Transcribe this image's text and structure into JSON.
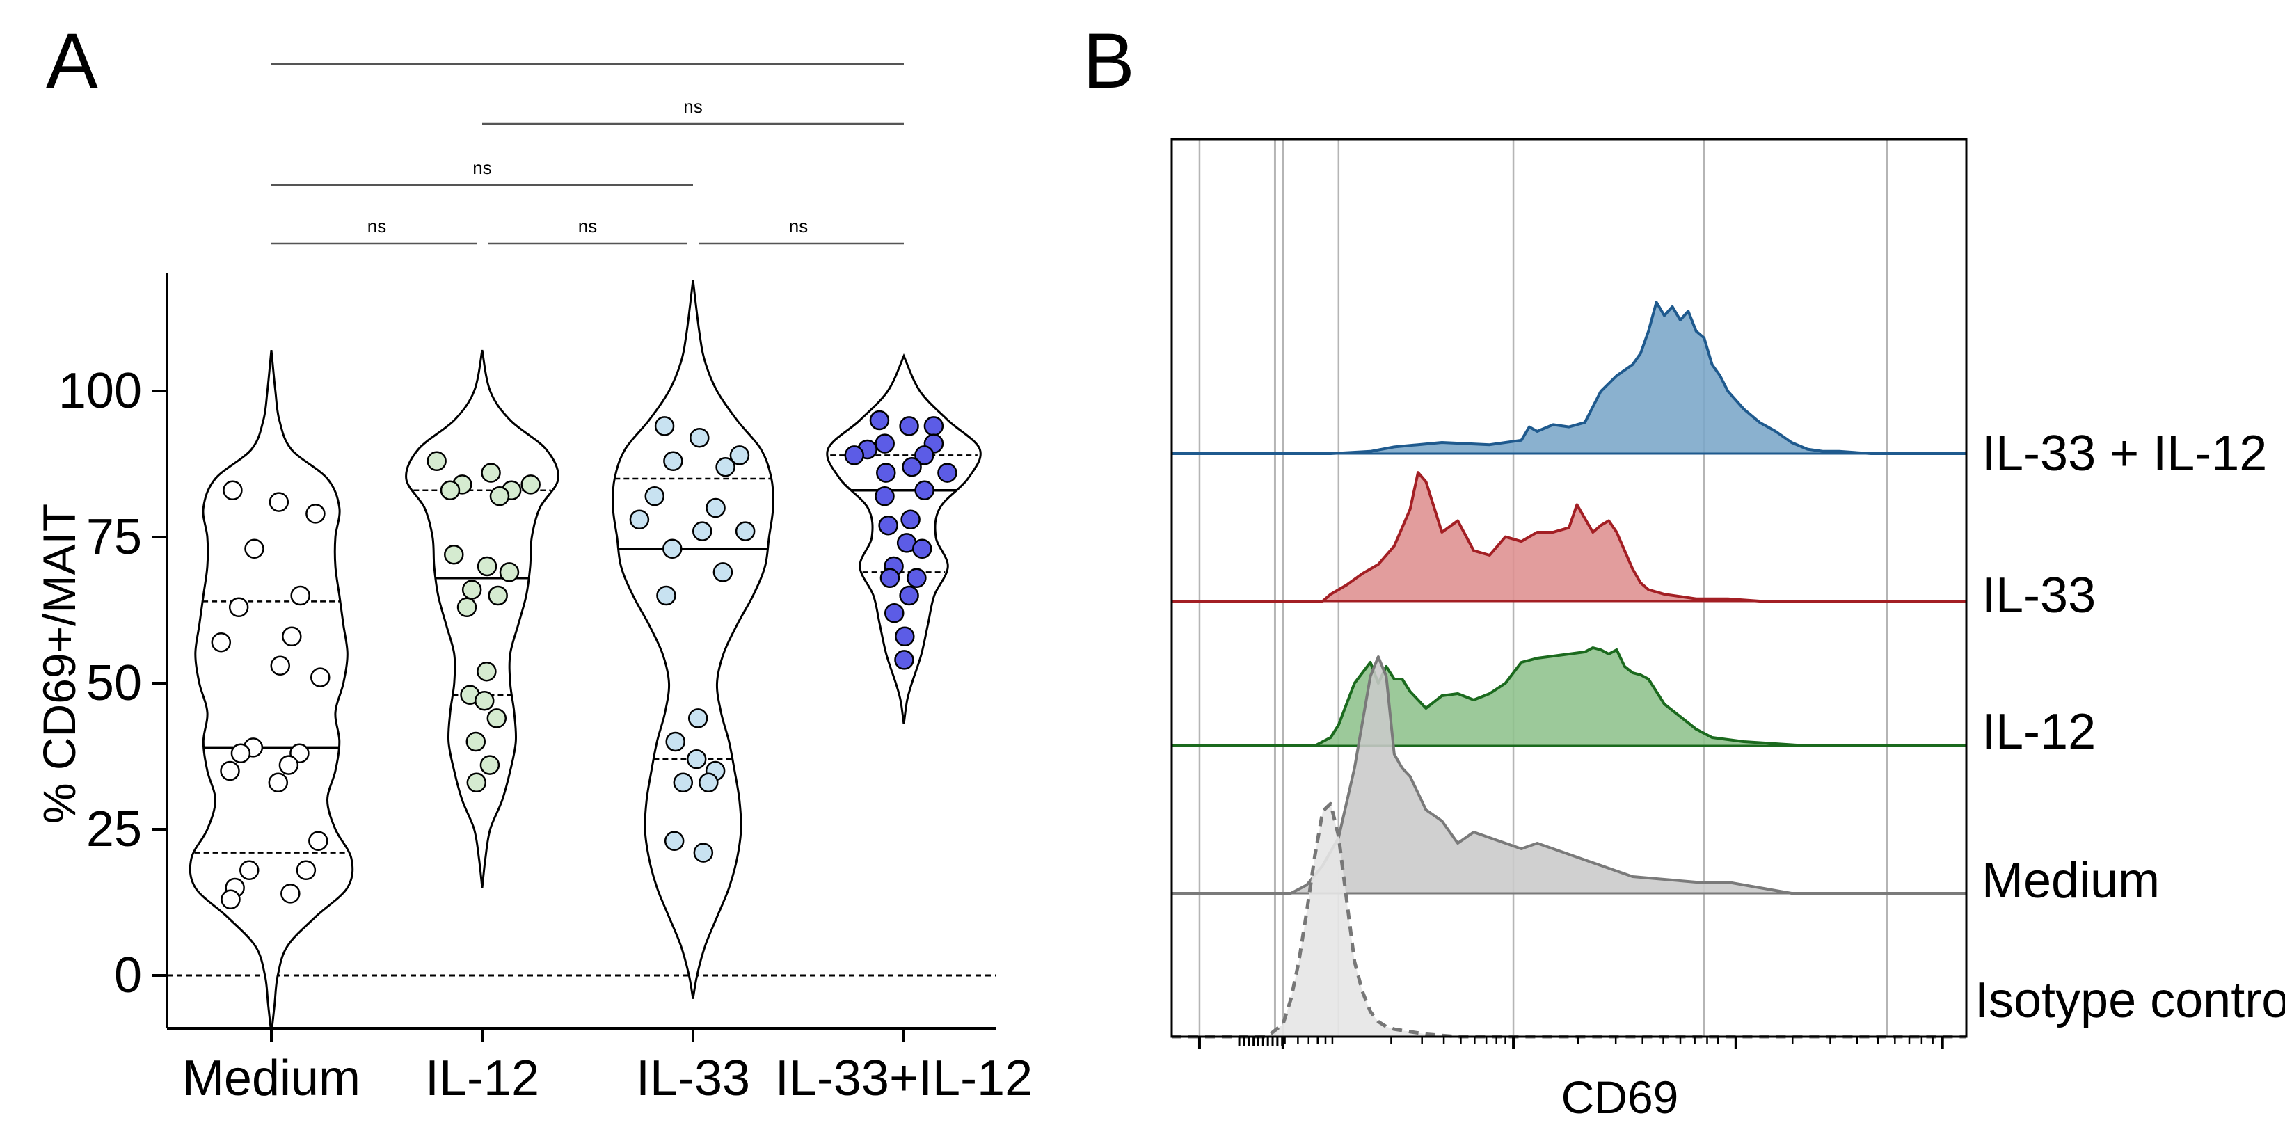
{
  "panels": {
    "a_letter": "A",
    "b_letter": "B"
  },
  "chart_data": [
    {
      "type": "violin",
      "panel": "A",
      "ylabel": "% CD69+/MAIT",
      "xlabel": "",
      "ylim": [
        -10,
        120
      ],
      "yticks": [
        0,
        25,
        50,
        75,
        100
      ],
      "zero_line": true,
      "categories": [
        "Medium",
        "IL-12",
        "IL-33",
        "IL-33+IL-12"
      ],
      "colors": [
        "#ffffff",
        "#d5ebd0",
        "#c8e2f1",
        "#5c5ce6"
      ],
      "series": [
        {
          "name": "Medium",
          "points": [
            83,
            81,
            79,
            73,
            65,
            63,
            58,
            57,
            53,
            51,
            39,
            38,
            38,
            36,
            35,
            33,
            23,
            18,
            18,
            15,
            14,
            13
          ],
          "median": 39,
          "q1": 21,
          "q3": 64,
          "violin_extent": [
            -10,
            107
          ],
          "violin_width": [
            [
              -10,
              0
            ],
            [
              -5,
              0.04
            ],
            [
              0,
              0.08
            ],
            [
              5,
              0.2
            ],
            [
              10,
              0.55
            ],
            [
              15,
              0.95
            ],
            [
              20,
              1.0
            ],
            [
              25,
              0.8
            ],
            [
              30,
              0.7
            ],
            [
              35,
              0.8
            ],
            [
              40,
              0.85
            ],
            [
              45,
              0.8
            ],
            [
              50,
              0.9
            ],
            [
              55,
              0.95
            ],
            [
              60,
              0.9
            ],
            [
              65,
              0.85
            ],
            [
              70,
              0.8
            ],
            [
              75,
              0.8
            ],
            [
              80,
              0.85
            ],
            [
              85,
              0.7
            ],
            [
              90,
              0.25
            ],
            [
              95,
              0.1
            ],
            [
              100,
              0.05
            ],
            [
              107,
              0
            ]
          ]
        },
        {
          "name": "IL-12",
          "points": [
            88,
            86,
            84,
            84,
            83,
            83,
            82,
            72,
            70,
            69,
            66,
            65,
            63,
            52,
            48,
            47,
            44,
            40,
            36,
            33
          ],
          "median": 68,
          "q1": 48,
          "q3": 83,
          "violin_extent": [
            15,
            107
          ],
          "violin_width": [
            [
              15,
              0
            ],
            [
              20,
              0.04
            ],
            [
              25,
              0.1
            ],
            [
              30,
              0.25
            ],
            [
              35,
              0.35
            ],
            [
              40,
              0.42
            ],
            [
              45,
              0.4
            ],
            [
              50,
              0.35
            ],
            [
              55,
              0.35
            ],
            [
              60,
              0.45
            ],
            [
              65,
              0.55
            ],
            [
              70,
              0.6
            ],
            [
              75,
              0.62
            ],
            [
              80,
              0.72
            ],
            [
              85,
              0.95
            ],
            [
              90,
              0.8
            ],
            [
              95,
              0.35
            ],
            [
              100,
              0.1
            ],
            [
              107,
              0
            ]
          ]
        },
        {
          "name": "IL-33",
          "points": [
            94,
            92,
            89,
            88,
            87,
            82,
            80,
            78,
            76,
            76,
            73,
            69,
            65,
            44,
            40,
            37,
            35,
            33,
            33,
            23,
            21
          ],
          "median": 73,
          "q1": 37,
          "q3": 85,
          "violin_extent": [
            -4,
            119
          ],
          "violin_width": [
            [
              -4,
              0
            ],
            [
              0,
              0.05
            ],
            [
              5,
              0.15
            ],
            [
              10,
              0.3
            ],
            [
              15,
              0.45
            ],
            [
              20,
              0.55
            ],
            [
              25,
              0.6
            ],
            [
              30,
              0.58
            ],
            [
              35,
              0.52
            ],
            [
              40,
              0.45
            ],
            [
              45,
              0.35
            ],
            [
              50,
              0.3
            ],
            [
              55,
              0.38
            ],
            [
              60,
              0.55
            ],
            [
              65,
              0.75
            ],
            [
              70,
              0.9
            ],
            [
              75,
              0.95
            ],
            [
              80,
              1.0
            ],
            [
              85,
              0.98
            ],
            [
              90,
              0.85
            ],
            [
              95,
              0.55
            ],
            [
              100,
              0.3
            ],
            [
              105,
              0.15
            ],
            [
              110,
              0.08
            ],
            [
              119,
              0
            ]
          ]
        },
        {
          "name": "IL-33+IL-12",
          "points": [
            95,
            94,
            94,
            91,
            91,
            90,
            89,
            89,
            87,
            86,
            86,
            83,
            82,
            78,
            77,
            74,
            73,
            70,
            68,
            68,
            65,
            62,
            58,
            54
          ],
          "median": 83,
          "q1": 69,
          "q3": 89,
          "violin_extent": [
            43,
            106
          ],
          "violin_width": [
            [
              43,
              0
            ],
            [
              47,
              0.04
            ],
            [
              50,
              0.1
            ],
            [
              55,
              0.22
            ],
            [
              60,
              0.3
            ],
            [
              65,
              0.38
            ],
            [
              70,
              0.55
            ],
            [
              75,
              0.4
            ],
            [
              80,
              0.45
            ],
            [
              85,
              0.8
            ],
            [
              90,
              0.95
            ],
            [
              95,
              0.55
            ],
            [
              100,
              0.2
            ],
            [
              106,
              0
            ]
          ]
        }
      ],
      "comparisons": [
        {
          "between": [
            "Medium",
            "IL-12"
          ],
          "label": "ns"
        },
        {
          "between": [
            "IL-12",
            "IL-33"
          ],
          "label": "ns"
        },
        {
          "between": [
            "IL-33",
            "IL-33+IL-12"
          ],
          "label": "ns"
        },
        {
          "between": [
            "Medium",
            "IL-33"
          ],
          "label": "ns"
        },
        {
          "between": [
            "IL-12",
            "IL-33+IL-12"
          ],
          "label": "ns"
        },
        {
          "between": [
            "Medium",
            "IL-33+IL-12"
          ],
          "label": ""
        }
      ]
    },
    {
      "type": "area",
      "panel": "B",
      "subtype": "stacked histogram overlay",
      "xlabel": "CD69",
      "ylabel": "",
      "x_scale": "log",
      "xlim": [
        0,
        1
      ],
      "series": [
        {
          "name": "IL-33 + IL-12",
          "fill": "#7aa6c8",
          "stroke": "#1f5a8e",
          "x": [
            0.0,
            0.2,
            0.25,
            0.28,
            0.31,
            0.34,
            0.4,
            0.44,
            0.45,
            0.46,
            0.48,
            0.5,
            0.52,
            0.54,
            0.56,
            0.58,
            0.59,
            0.6,
            0.61,
            0.62,
            0.63,
            0.64,
            0.65,
            0.66,
            0.67,
            0.68,
            0.69,
            0.7,
            0.72,
            0.74,
            0.76,
            0.78,
            0.8,
            0.82,
            0.84,
            0.88,
            0.92,
            1.0
          ],
          "y": [
            0.0,
            0.0,
            0.01,
            0.03,
            0.04,
            0.05,
            0.04,
            0.06,
            0.12,
            0.1,
            0.13,
            0.12,
            0.14,
            0.28,
            0.35,
            0.4,
            0.45,
            0.55,
            0.68,
            0.62,
            0.66,
            0.6,
            0.64,
            0.55,
            0.52,
            0.4,
            0.35,
            0.28,
            0.2,
            0.14,
            0.1,
            0.05,
            0.02,
            0.01,
            0.01,
            0.0,
            0.0,
            0.0
          ]
        },
        {
          "name": "IL-33",
          "fill": "#de9090",
          "stroke": "#a31f24",
          "x": [
            0.0,
            0.19,
            0.2,
            0.22,
            0.24,
            0.26,
            0.28,
            0.3,
            0.31,
            0.32,
            0.34,
            0.36,
            0.38,
            0.4,
            0.42,
            0.44,
            0.46,
            0.48,
            0.5,
            0.51,
            0.52,
            0.53,
            0.54,
            0.55,
            0.56,
            0.57,
            0.58,
            0.59,
            0.6,
            0.62,
            0.64,
            0.66,
            0.7,
            0.74,
            0.78,
            0.82,
            1.0
          ],
          "y": [
            0.0,
            0.0,
            0.03,
            0.07,
            0.12,
            0.16,
            0.24,
            0.4,
            0.56,
            0.52,
            0.3,
            0.35,
            0.22,
            0.2,
            0.28,
            0.26,
            0.3,
            0.3,
            0.32,
            0.42,
            0.36,
            0.3,
            0.33,
            0.35,
            0.3,
            0.22,
            0.14,
            0.08,
            0.05,
            0.03,
            0.02,
            0.01,
            0.01,
            0.0,
            0.0,
            0.0,
            0.0
          ]
        },
        {
          "name": "IL-12",
          "fill": "#8ec28c",
          "stroke": "#1b6a1e",
          "x": [
            0.0,
            0.18,
            0.2,
            0.21,
            0.22,
            0.23,
            0.25,
            0.26,
            0.27,
            0.28,
            0.29,
            0.3,
            0.32,
            0.34,
            0.36,
            0.38,
            0.4,
            0.42,
            0.44,
            0.46,
            0.48,
            0.5,
            0.52,
            0.53,
            0.54,
            0.55,
            0.56,
            0.57,
            0.58,
            0.59,
            0.6,
            0.61,
            0.62,
            0.64,
            0.66,
            0.68,
            0.72,
            0.76,
            0.8,
            0.84,
            1.0
          ],
          "y": [
            0.0,
            0.0,
            0.04,
            0.1,
            0.2,
            0.3,
            0.4,
            0.3,
            0.38,
            0.32,
            0.32,
            0.26,
            0.18,
            0.24,
            0.25,
            0.22,
            0.25,
            0.3,
            0.4,
            0.42,
            0.43,
            0.44,
            0.45,
            0.47,
            0.46,
            0.44,
            0.46,
            0.38,
            0.35,
            0.34,
            0.32,
            0.26,
            0.2,
            0.14,
            0.08,
            0.04,
            0.02,
            0.01,
            0.0,
            0.0,
            0.0
          ]
        },
        {
          "name": "Medium",
          "fill": "#c9c9c9",
          "stroke": "#7a7a7a",
          "x": [
            0.0,
            0.15,
            0.17,
            0.19,
            0.21,
            0.23,
            0.25,
            0.26,
            0.27,
            0.28,
            0.29,
            0.3,
            0.32,
            0.34,
            0.36,
            0.38,
            0.4,
            0.42,
            0.44,
            0.46,
            0.48,
            0.5,
            0.52,
            0.54,
            0.58,
            0.62,
            0.66,
            0.7,
            0.74,
            0.78,
            1.0
          ],
          "y": [
            0.0,
            0.0,
            0.03,
            0.1,
            0.2,
            0.45,
            0.78,
            0.85,
            0.78,
            0.5,
            0.45,
            0.42,
            0.3,
            0.26,
            0.18,
            0.22,
            0.2,
            0.18,
            0.16,
            0.18,
            0.16,
            0.14,
            0.12,
            0.1,
            0.06,
            0.05,
            0.04,
            0.04,
            0.02,
            0.0,
            0.0
          ]
        },
        {
          "name": "Isotype control",
          "fill": "#e6e6e6",
          "stroke": "#777777",
          "dashed": true,
          "x": [
            0.0,
            0.12,
            0.14,
            0.15,
            0.16,
            0.17,
            0.18,
            0.19,
            0.2,
            0.21,
            0.22,
            0.23,
            0.24,
            0.25,
            0.26,
            0.27,
            0.28,
            0.3,
            0.32,
            0.36,
            0.4,
            1.0
          ],
          "y": [
            0.0,
            0.0,
            0.05,
            0.15,
            0.3,
            0.5,
            0.72,
            0.9,
            0.93,
            0.8,
            0.55,
            0.3,
            0.18,
            0.1,
            0.06,
            0.04,
            0.03,
            0.02,
            0.01,
            0.0,
            0.0,
            0.0
          ]
        }
      ]
    }
  ]
}
